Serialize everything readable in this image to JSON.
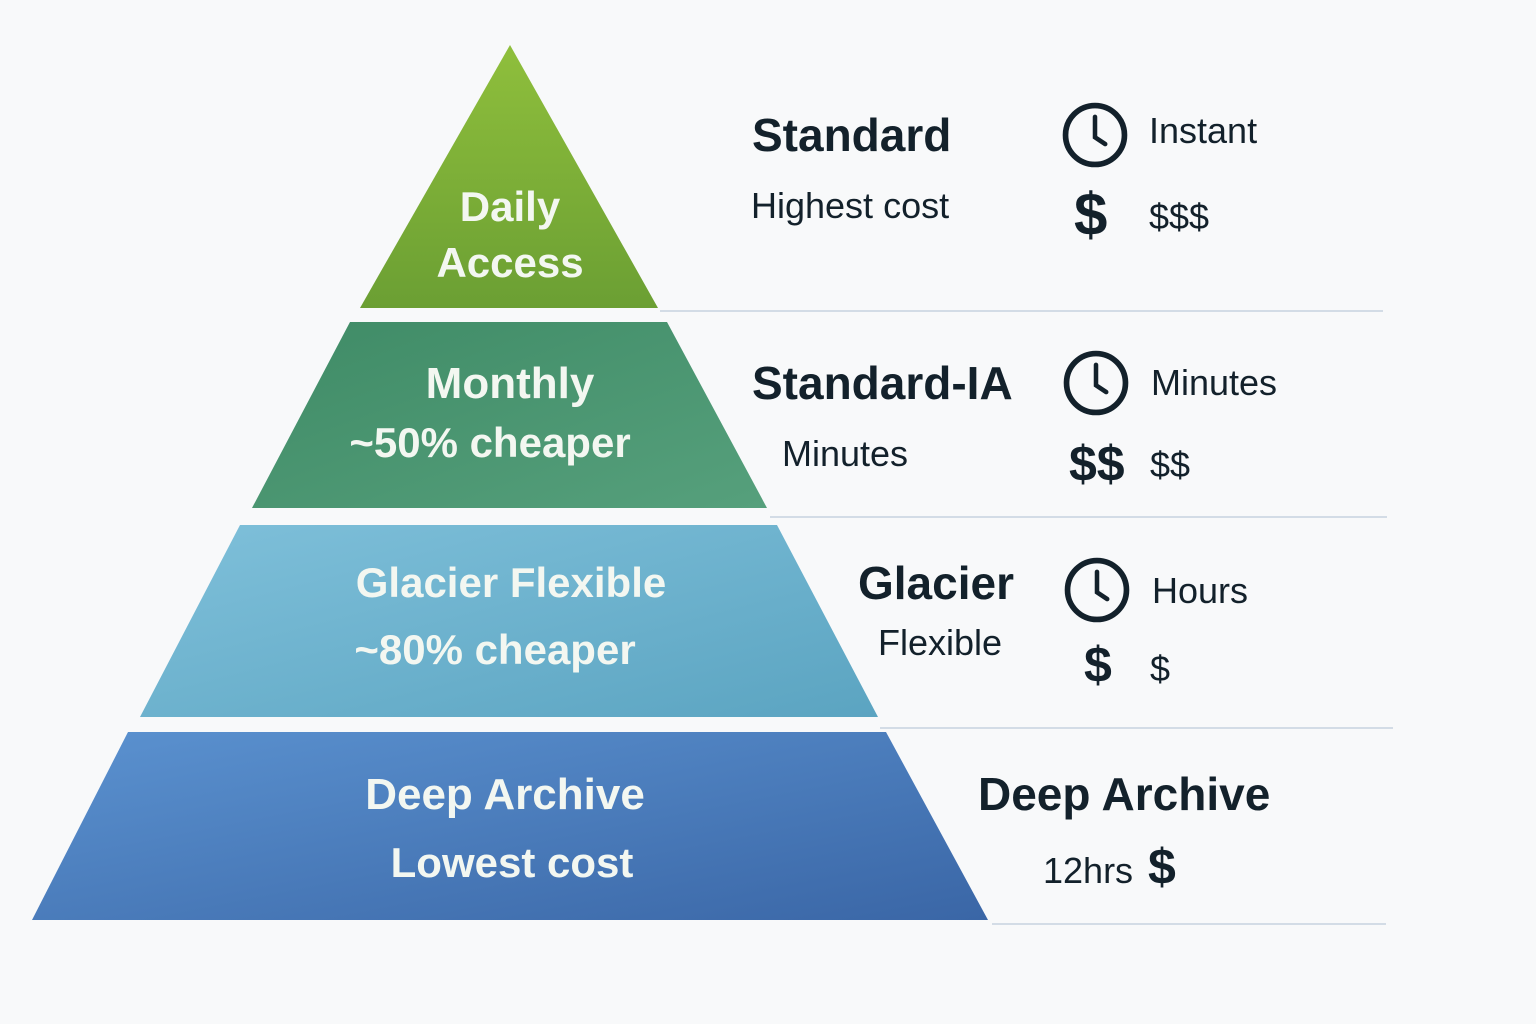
{
  "pyramid": [
    {
      "line1": "Daily",
      "line2": "Access",
      "color_top": "#8fbf3c",
      "color_bottom": "#6b9f33"
    },
    {
      "line1": "Monthly",
      "line2": "~50% cheaper",
      "color_top": "#3f8b66",
      "color_bottom": "#56a07c"
    },
    {
      "line1": "Glacier Flexible",
      "line2": "~80% cheaper",
      "color_top": "#7fc0da",
      "color_bottom": "#5ba4c1"
    },
    {
      "line1": "Deep Archive",
      "line2": "Lowest cost",
      "color_top": "#5b92d0",
      "color_bottom": "#3a66a6"
    }
  ],
  "tiers": [
    {
      "name": "Standard",
      "subtitle": "Highest cost",
      "clock_icon": "clock-icon",
      "speed": "Instant",
      "cost_icon": "$",
      "cost": "$$$"
    },
    {
      "name": "Standard-IA",
      "subtitle": "Minutes",
      "clock_icon": "clock-icon",
      "speed": "Minutes",
      "cost_icon": "$$",
      "cost": "$$"
    },
    {
      "name": "Glacier",
      "subtitle": "Flexible",
      "clock_icon": "clock-icon",
      "speed": "Hours",
      "cost_icon": "$",
      "cost": "$"
    },
    {
      "name": "Deep Archive",
      "speed": "12hrs",
      "cost_icon": "$"
    }
  ]
}
